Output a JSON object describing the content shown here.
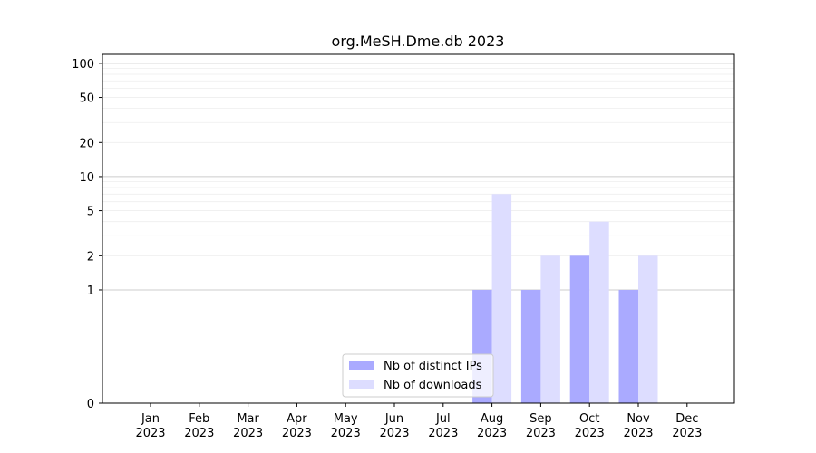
{
  "chart_data": {
    "type": "bar",
    "title": "org.MeSH.Dme.db 2023",
    "xlabel": "",
    "ylabel": "",
    "yscale": "symlog",
    "ylim": [
      0,
      120
    ],
    "categories": [
      {
        "month": "Jan",
        "year": "2023"
      },
      {
        "month": "Feb",
        "year": "2023"
      },
      {
        "month": "Mar",
        "year": "2023"
      },
      {
        "month": "Apr",
        "year": "2023"
      },
      {
        "month": "May",
        "year": "2023"
      },
      {
        "month": "Jun",
        "year": "2023"
      },
      {
        "month": "Jul",
        "year": "2023"
      },
      {
        "month": "Aug",
        "year": "2023"
      },
      {
        "month": "Sep",
        "year": "2023"
      },
      {
        "month": "Oct",
        "year": "2023"
      },
      {
        "month": "Nov",
        "year": "2023"
      },
      {
        "month": "Dec",
        "year": "2023"
      }
    ],
    "y_ticks": [
      "0",
      "1",
      "2",
      "5",
      "10",
      "20",
      "50",
      "100"
    ],
    "series": [
      {
        "name": "Nb of distinct IPs",
        "color": "#aaaaff",
        "values": [
          0,
          0,
          0,
          0,
          0,
          0,
          0,
          1,
          1,
          2,
          1,
          0
        ]
      },
      {
        "name": "Nb of downloads",
        "color": "#ddddff",
        "values": [
          0,
          0,
          0,
          0,
          0,
          0,
          0,
          7,
          2,
          4,
          2,
          0
        ]
      }
    ],
    "grid": true,
    "legend_position": "bottom-center"
  }
}
